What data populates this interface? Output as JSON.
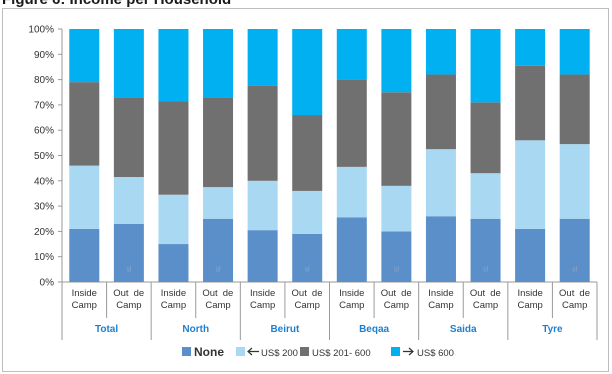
{
  "chart_data": {
    "type": "bar",
    "stacked": true,
    "percent": true,
    "title": "",
    "xlabel": "",
    "ylabel": "",
    "ylim": [
      0,
      100
    ],
    "yticks": [
      "0%",
      "10%",
      "20%",
      "30%",
      "40%",
      "50%",
      "60%",
      "70%",
      "80%",
      "90%",
      "100%"
    ],
    "grid": false,
    "legend_position": "bottom",
    "groups": [
      "Total",
      "North",
      "Beirut",
      "Beqaa",
      "Saida",
      "Tyre"
    ],
    "categories": [
      "Inside Camp",
      "Out de Camp",
      "Inside Camp",
      "Out de Camp",
      "Inside Camp",
      "Out de Camp",
      "Inside Camp",
      "Out de Camp",
      "Inside Camp",
      "Out de Camp",
      "Inside Camp",
      "Out de Camp"
    ],
    "category_lines": [
      [
        "Inside",
        "Camp"
      ],
      [
        "Out",
        "de",
        "Camp"
      ]
    ],
    "bar_marks": [
      "",
      "sl",
      "",
      "sl",
      "",
      "sl",
      "",
      "sl",
      "",
      "sl",
      "",
      "sl"
    ],
    "series": [
      {
        "name": "None",
        "color": "#5b8fc9",
        "values": [
          21,
          23,
          15,
          25,
          20.5,
          19,
          25.5,
          20,
          26,
          25,
          21,
          25
        ]
      },
      {
        "name": "US$ 200",
        "color": "#a9d8f3",
        "values": [
          25,
          18.5,
          19.5,
          12.5,
          19.5,
          17,
          20,
          18,
          26.5,
          18,
          35,
          29.5
        ]
      },
      {
        "name": "US$ 201- 600",
        "color": "#707070",
        "values": [
          33,
          31.5,
          37,
          35.5,
          37.5,
          30,
          34.5,
          37,
          29.5,
          28,
          29.5,
          27.5
        ]
      },
      {
        "name": "US$ 600",
        "color": "#00b0f0",
        "values": [
          21,
          27,
          28.5,
          27,
          22.5,
          34,
          20,
          25,
          18,
          29,
          14.5,
          18
        ]
      }
    ],
    "legend": [
      {
        "label": "None",
        "icon": "square",
        "color": "#5b8fc9",
        "bold": true
      },
      {
        "label": "US$ 200",
        "icon": "square",
        "color": "#a9d8f3",
        "arrow": "left",
        "bold": false
      },
      {
        "label": "US$ 201- 600",
        "icon": "square",
        "color": "#707070",
        "bold": false
      },
      {
        "label": "US$ 600",
        "icon": "square",
        "color": "#00b0f0",
        "arrow": "right",
        "bold": false
      }
    ]
  }
}
